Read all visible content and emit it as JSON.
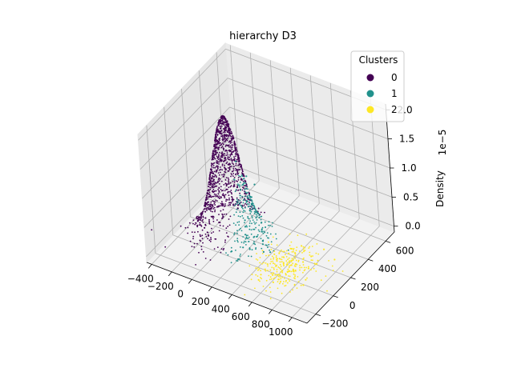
{
  "chart_data": {
    "type": "scatter",
    "projection": "3d",
    "title": "hierarchy D3",
    "xlabel": "",
    "ylabel": "",
    "zlabel": "Density",
    "z_offset_label": "1e−5",
    "xlim": [
      -450,
      1150
    ],
    "ylim": [
      -300,
      700
    ],
    "zlim": [
      -0.1,
      2.1
    ],
    "z_scale": 1e-05,
    "x_ticks": [
      "−400",
      "−200",
      "0",
      "200",
      "400",
      "600",
      "800",
      "1000"
    ],
    "x_tick_values": [
      -400,
      -200,
      0,
      200,
      400,
      600,
      800,
      1000
    ],
    "y_ticks": [
      "−200",
      "0",
      "200",
      "400",
      "600"
    ],
    "y_tick_values": [
      -200,
      0,
      200,
      400,
      600
    ],
    "z_ticks": [
      "0.0",
      "0.5",
      "1.0",
      "1.5",
      "2.0"
    ],
    "z_tick_values": [
      0.0,
      0.5,
      1.0,
      1.5,
      2.0
    ],
    "grid": true,
    "legend": {
      "title": "Clusters",
      "position": "top-right",
      "entries": [
        {
          "label": "0",
          "color": "#440154"
        },
        {
          "label": "1",
          "color": "#21918c"
        },
        {
          "label": "2",
          "color": "#fde725"
        }
      ]
    },
    "density_peak": {
      "x": 0,
      "y": 150,
      "z_max": 2.0
    },
    "series": [
      {
        "name": "0",
        "color": "#440154",
        "x": [
          -200,
          -150,
          -100,
          -50,
          0,
          50,
          -250,
          -180,
          -120,
          -60,
          20,
          80,
          -300,
          -220,
          -140,
          -80,
          -20,
          40,
          100,
          -160,
          -90,
          -30,
          30,
          -200,
          -120,
          -60
        ],
        "y": [
          100,
          150,
          200,
          120,
          180,
          90,
          60,
          220,
          140,
          250,
          130,
          170,
          120,
          80,
          260,
          200,
          100,
          220,
          140,
          40,
          60,
          280,
          50,
          180,
          300,
          120
        ],
        "z": [
          0.2,
          0.6,
          1.1,
          1.6,
          1.9,
          1.4,
          0.1,
          0.4,
          0.9,
          1.3,
          1.7,
          0.8,
          0.05,
          0.3,
          0.7,
          1.2,
          1.5,
          1.0,
          0.5,
          0.15,
          0.35,
          0.25,
          0.45,
          0.1,
          0.2,
          0.6
        ]
      },
      {
        "name": "1",
        "color": "#21918c",
        "x": [
          150,
          200,
          250,
          300,
          350,
          180,
          230,
          280,
          330,
          380,
          420,
          160,
          210,
          260,
          310,
          360,
          200,
          250,
          300,
          440,
          190,
          240
        ],
        "y": [
          100,
          150,
          80,
          120,
          60,
          40,
          200,
          20,
          140,
          90,
          50,
          -20,
          180,
          0,
          70,
          110,
          250,
          -50,
          30,
          100,
          120,
          60
        ],
        "z": [
          1.4,
          1.1,
          0.8,
          0.5,
          0.3,
          1.2,
          0.9,
          0.6,
          0.4,
          0.2,
          0.1,
          0.05,
          0.7,
          0.15,
          0.25,
          0.1,
          0.3,
          0.02,
          0.1,
          0.03,
          1.0,
          0.4
        ]
      },
      {
        "name": "2",
        "color": "#fde725",
        "x": [
          500,
          550,
          600,
          650,
          700,
          520,
          580,
          640,
          700,
          760,
          820,
          880,
          540,
          620,
          680,
          740,
          800,
          900,
          950,
          480,
          560,
          660,
          720,
          850
        ],
        "y": [
          0,
          50,
          -50,
          100,
          20,
          -100,
          150,
          60,
          -20,
          200,
          100,
          0,
          -150,
          250,
          -80,
          130,
          300,
          -50,
          250,
          100,
          200,
          -120,
          40,
          160
        ],
        "z": [
          0.02,
          0.03,
          0.01,
          0.02,
          0.0,
          0.01,
          0.02,
          0.01,
          0.0,
          0.01,
          0.0,
          0.0,
          0.01,
          0.02,
          0.0,
          0.01,
          0.0,
          0.0,
          0.0,
          0.02,
          0.01,
          0.0,
          0.01,
          0.0
        ]
      }
    ]
  }
}
